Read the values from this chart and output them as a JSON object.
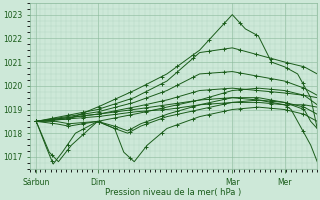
{
  "xlabel": "Pression niveau de la mer( hPa )",
  "bg_color": "#cde8d8",
  "line_color": "#1a5c1a",
  "ylim": [
    1016.5,
    1023.5
  ],
  "xlim": [
    0,
    220
  ],
  "xtick_positions": [
    5,
    52,
    155,
    195
  ],
  "xtick_labels": [
    "Sárbun",
    "Dim",
    "Mar",
    "Mer"
  ],
  "ytick_values": [
    1017,
    1018,
    1019,
    1020,
    1021,
    1022,
    1023
  ],
  "figsize": [
    3.2,
    2.0
  ],
  "dpi": 100
}
